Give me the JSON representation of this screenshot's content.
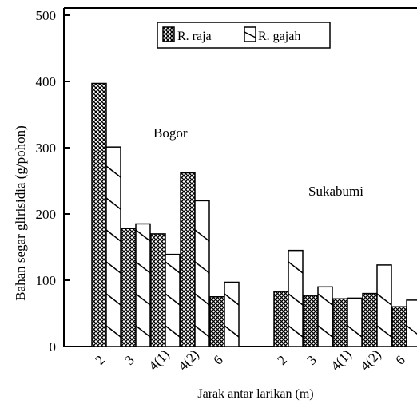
{
  "chart_data": {
    "type": "bar",
    "ylabel": "Bahan segar glirisidia (g/pohon)",
    "xlabel": "Jarak antar larikan (m)",
    "ylim": [
      0,
      500
    ],
    "yticks": [
      "0",
      "100",
      "200",
      "300",
      "400",
      "500"
    ],
    "groups": [
      {
        "label": "Bogor",
        "categories": [
          "2",
          "3",
          "4(1)",
          "4(2)",
          "6"
        ],
        "series": [
          {
            "name": "R. raja",
            "values": [
              397,
              178,
              170,
              262,
              75
            ]
          },
          {
            "name": "R. gajah",
            "values": [
              301,
              185,
              139,
              220,
              97
            ]
          }
        ]
      },
      {
        "label": "Sukabumi",
        "categories": [
          "2",
          "3",
          "4(1)",
          "4(2)",
          "6"
        ],
        "series": [
          {
            "name": "R. raja",
            "values": [
              83,
              77,
              72,
              80,
              60
            ]
          },
          {
            "name": "R. gajah",
            "values": [
              145,
              90,
              73,
              123,
              70
            ]
          }
        ]
      }
    ],
    "legend": {
      "position": "top-center",
      "items": [
        {
          "name": "R. raja",
          "pattern": "crosshatch"
        },
        {
          "name": "R. gajah",
          "pattern": "diagonal"
        }
      ]
    },
    "grid": false
  }
}
